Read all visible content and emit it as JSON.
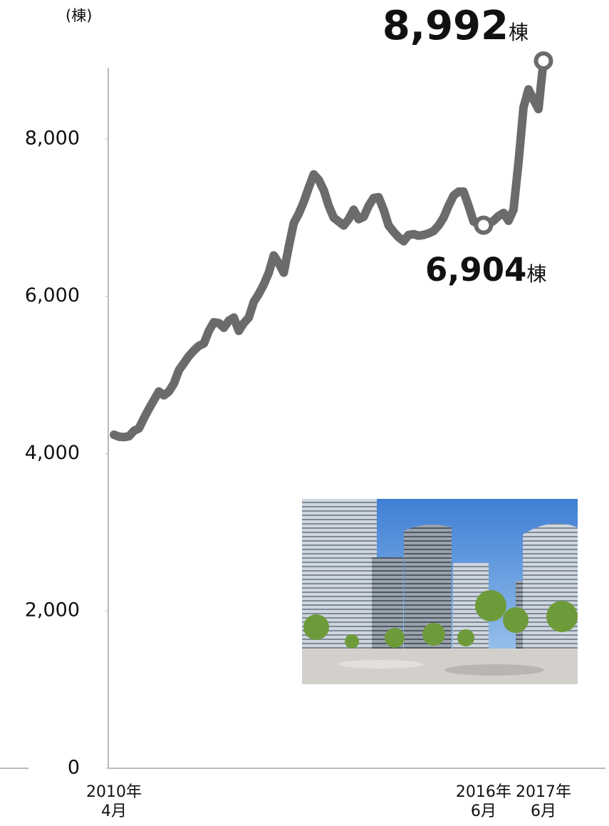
{
  "chart_data": {
    "type": "line",
    "ylabel": "(棟)",
    "value_label_unit": "棟",
    "color": "#6b6b6b",
    "ylim": [
      0,
      9000
    ],
    "yticks": [
      {
        "value": 0,
        "label": "0"
      },
      {
        "value": 2000,
        "label": "2,000"
      },
      {
        "value": 4000,
        "label": "4,000"
      },
      {
        "value": 6000,
        "label": "6,000"
      },
      {
        "value": 8000,
        "label": "8,000"
      }
    ],
    "grid": false,
    "categories": [
      "2010年\n4月",
      null,
      null,
      null,
      null,
      null,
      null,
      null,
      null,
      null,
      null,
      null,
      null,
      null,
      null,
      null,
      null,
      null,
      null,
      null,
      null,
      null,
      null,
      null,
      null,
      null,
      null,
      null,
      null,
      null,
      null,
      null,
      null,
      null,
      null,
      null,
      null,
      null,
      null,
      null,
      null,
      null,
      null,
      null,
      null,
      null,
      null,
      null,
      null,
      null,
      null,
      null,
      null,
      null,
      null,
      null,
      null,
      null,
      null,
      null,
      null,
      null,
      null,
      null,
      null,
      null,
      null,
      null,
      null,
      null,
      null,
      null,
      null,
      null,
      "2016年\n6月",
      null,
      null,
      null,
      null,
      null,
      null,
      null,
      null,
      null,
      null,
      null,
      "2017年\n6月"
    ],
    "values": [
      4240,
      4215,
      4210,
      4220,
      4290,
      4320,
      4450,
      4570,
      4680,
      4790,
      4740,
      4790,
      4890,
      5060,
      5150,
      5240,
      5310,
      5370,
      5400,
      5560,
      5670,
      5660,
      5600,
      5690,
      5730,
      5560,
      5660,
      5730,
      5930,
      6030,
      6150,
      6300,
      6520,
      6420,
      6300,
      6630,
      6930,
      7050,
      7200,
      7380,
      7550,
      7480,
      7350,
      7150,
      7000,
      6950,
      6900,
      6980,
      7100,
      6980,
      7010,
      7150,
      7250,
      7260,
      7100,
      6900,
      6820,
      6750,
      6700,
      6780,
      6790,
      6770,
      6780,
      6800,
      6830,
      6900,
      7000,
      7150,
      7280,
      7330,
      7330,
      7150,
      6950,
      6920,
      6904,
      6920,
      6960,
      7020,
      7060,
      6960,
      7100,
      7700,
      8400,
      8630,
      8500,
      8380,
      8992
    ],
    "value_labels": [
      null,
      null,
      null,
      null,
      null,
      null,
      null,
      null,
      null,
      null,
      null,
      null,
      null,
      null,
      null,
      null,
      null,
      null,
      null,
      null,
      null,
      null,
      null,
      null,
      null,
      null,
      null,
      null,
      null,
      null,
      null,
      null,
      null,
      null,
      null,
      null,
      null,
      null,
      null,
      null,
      null,
      null,
      null,
      null,
      null,
      null,
      null,
      null,
      null,
      null,
      null,
      null,
      null,
      null,
      null,
      null,
      null,
      null,
      null,
      null,
      null,
      null,
      null,
      null,
      null,
      null,
      null,
      null,
      null,
      null,
      null,
      null,
      null,
      null,
      "6,904",
      null,
      null,
      null,
      null,
      null,
      null,
      null,
      null,
      null,
      null,
      null,
      "8,992"
    ]
  }
}
